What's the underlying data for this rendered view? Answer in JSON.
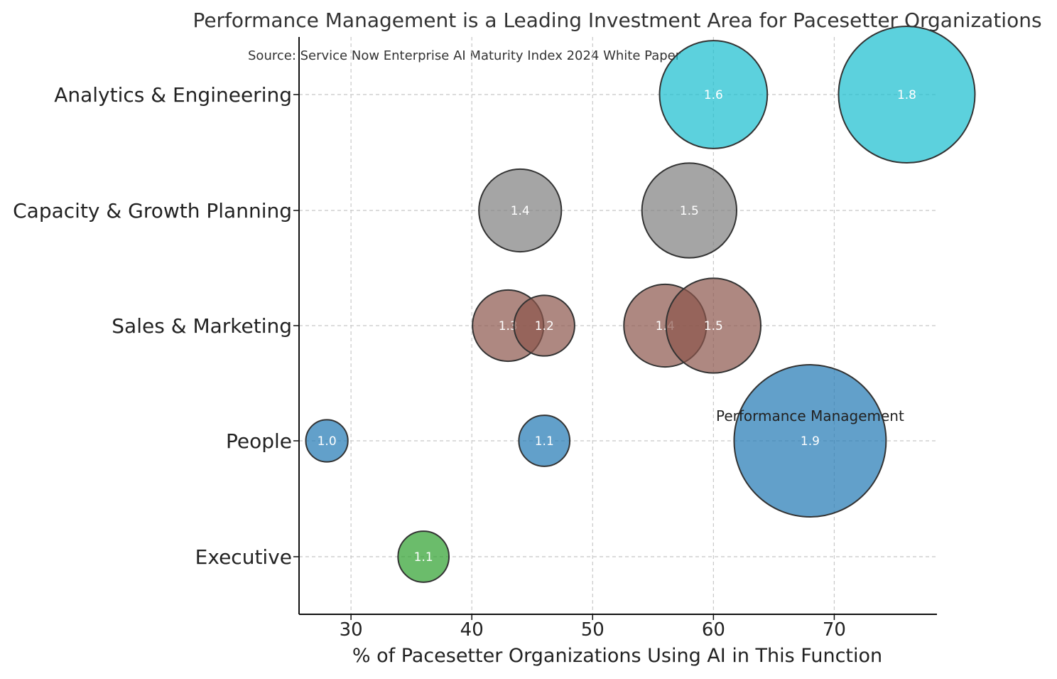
{
  "chart_data": {
    "type": "scatter",
    "variant": "bubble",
    "title": "Performance Management is a Leading Investment Area for Pacesetter Organizations",
    "subtitle": "Source: Service Now Enterprise AI Maturity Index 2024 White Paper",
    "xlabel": "% of Pacesetter Organizations Using AI in This Function",
    "ylabel": "",
    "xlim": [
      25.7,
      78.5
    ],
    "xticks": [
      "30",
      "40",
      "50",
      "60",
      "70"
    ],
    "categories": [
      "Analytics & Engineering",
      "Capacity & Growth Planning",
      "Sales & Marketing",
      "People",
      "Executive"
    ],
    "grid": true,
    "series": [
      {
        "name": "Analytics & Engineering",
        "color": "#17becf",
        "points": [
          {
            "x": 60,
            "size": 1.6,
            "label": "1.6"
          },
          {
            "x": 76,
            "size": 1.8,
            "label": "1.8"
          }
        ]
      },
      {
        "name": "Capacity & Growth Planning",
        "color": "#7f7f7f",
        "points": [
          {
            "x": 44,
            "size": 1.4,
            "label": "1.4"
          },
          {
            "x": 58,
            "size": 1.5,
            "label": "1.5"
          }
        ]
      },
      {
        "name": "Sales & Marketing",
        "color": "#8c564b",
        "points": [
          {
            "x": 43,
            "size": 1.3,
            "label": "1.3"
          },
          {
            "x": 46,
            "size": 1.2,
            "label": "1.2"
          },
          {
            "x": 56,
            "size": 1.4,
            "label": "1.4"
          },
          {
            "x": 60,
            "size": 1.5,
            "label": "1.5"
          }
        ]
      },
      {
        "name": "People",
        "color": "#1f77b4",
        "points": [
          {
            "x": 28,
            "size": 1.0,
            "label": "1.0"
          },
          {
            "x": 46,
            "size": 1.1,
            "label": "1.1"
          },
          {
            "x": 68,
            "size": 1.9,
            "label": "1.9"
          }
        ]
      },
      {
        "name": "Executive",
        "color": "#2ca02c",
        "points": [
          {
            "x": 36,
            "size": 1.1,
            "label": "1.1"
          }
        ]
      }
    ],
    "annotations": [
      {
        "text": "Performance Management",
        "category": "People",
        "x": 68
      }
    ]
  }
}
